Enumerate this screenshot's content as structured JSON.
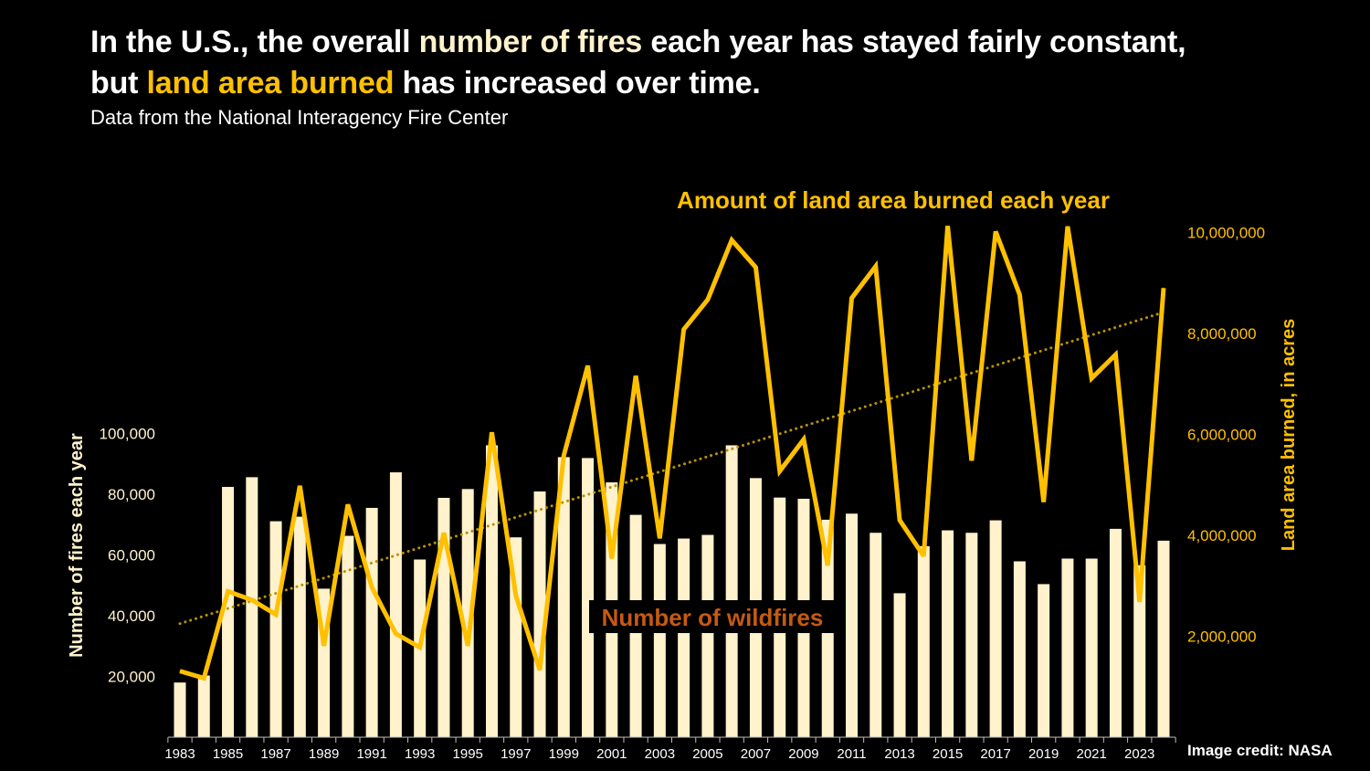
{
  "title": {
    "line1_pre": "In the U.S., the overall ",
    "line1_hl": "number of fires",
    "line1_post": " each year has stayed fairly constant,",
    "line2_pre": "but ",
    "line2_hl": "land area burned",
    "line2_post": " has increased over time."
  },
  "subtitle": "Data from the National Interagency Fire Center",
  "credit": "Image credit: NASA",
  "colors": {
    "background": "#000000",
    "bars": "#FFF2CC",
    "line": "#FFC000",
    "trend": "#B8900A",
    "wildfire_label": "#C55A11",
    "text": "#FFFFFF"
  },
  "chart_data": {
    "type": "bar+line",
    "categories": [
      1983,
      1984,
      1985,
      1986,
      1987,
      1988,
      1989,
      1990,
      1991,
      1992,
      1993,
      1994,
      1995,
      1996,
      1997,
      1998,
      1999,
      2000,
      2001,
      2002,
      2003,
      2004,
      2005,
      2006,
      2007,
      2008,
      2009,
      2010,
      2011,
      2012,
      2013,
      2014,
      2015,
      2016,
      2017,
      2018,
      2019,
      2020,
      2021,
      2022,
      2023,
      2024
    ],
    "x_tick_labels": [
      "1983",
      "1985",
      "1987",
      "1989",
      "1991",
      "1993",
      "1995",
      "1997",
      "1999",
      "2001",
      "2003",
      "2005",
      "2007",
      "2009",
      "2011",
      "2013",
      "2015",
      "2017",
      "2019",
      "2021",
      "2023"
    ],
    "series": [
      {
        "name": "Number of wildfires",
        "type": "bar",
        "axis": "left",
        "values": [
          18000,
          20300,
          82400,
          85600,
          71100,
          72600,
          48900,
          66300,
          75500,
          87200,
          58500,
          78800,
          81700,
          96100,
          65800,
          80900,
          92200,
          91900,
          83900,
          73200,
          63600,
          65400,
          66600,
          96100,
          85300,
          78900,
          78500,
          71600,
          73600,
          67300,
          47400,
          62900,
          68100,
          67300,
          71400,
          57900,
          50400,
          58800,
          58800,
          68600,
          56600,
          64700
        ]
      },
      {
        "name": "Amount of land area burned each year",
        "type": "line",
        "axis": "right",
        "values": [
          1310000,
          1170000,
          2890000,
          2720000,
          2430000,
          4980000,
          1810000,
          4610000,
          2970000,
          2050000,
          1780000,
          4050000,
          1810000,
          6040000,
          2810000,
          1330000,
          5580000,
          7360000,
          3540000,
          7160000,
          3940000,
          8080000,
          8670000,
          9850000,
          9310000,
          5270000,
          5900000,
          3400000,
          8700000,
          9330000,
          4300000,
          3590000,
          10130000,
          5480000,
          10020000,
          8770000,
          4660000,
          10120000,
          7110000,
          7580000,
          2680000,
          8900000
        ]
      },
      {
        "type": "trendline",
        "axis": "right",
        "style": "dotted",
        "start": [
          1983,
          2250000
        ],
        "end": [
          2024,
          8420000
        ]
      }
    ],
    "y_left": {
      "label": "Number of fires each year",
      "ticks": [
        "20,000",
        "40,000",
        "60,000",
        "80,000",
        "100,000"
      ],
      "tick_values": [
        20000,
        40000,
        60000,
        80000,
        100000
      ],
      "range": [
        0,
        100000
      ]
    },
    "y_right": {
      "label": "Land area burned, in acres",
      "ticks": [
        "2,000,000",
        "4,000,000",
        "6,000,000",
        "8,000,000",
        "10,000,000"
      ],
      "tick_values": [
        2000000,
        4000000,
        6000000,
        8000000,
        10000000
      ],
      "range": [
        0,
        10000000
      ]
    },
    "grid": false
  }
}
